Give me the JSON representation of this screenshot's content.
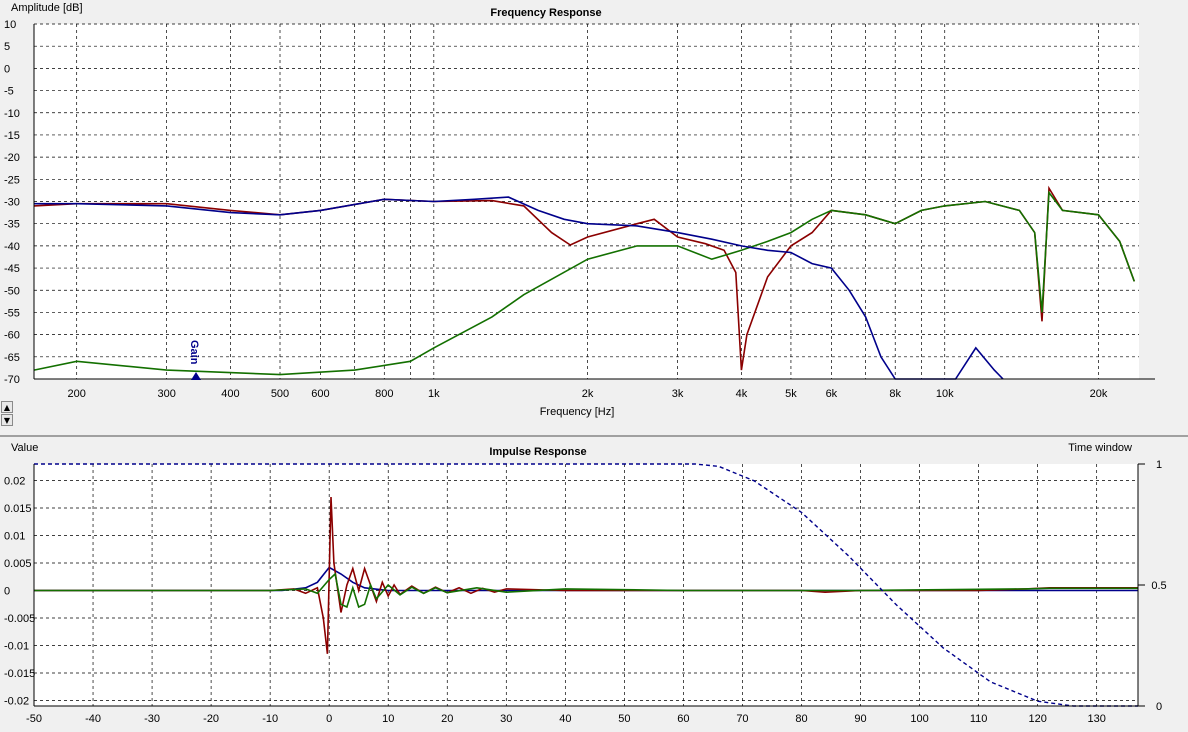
{
  "colors": {
    "red": "#8b0000",
    "green": "#137000",
    "blue": "#00008b",
    "window": "#00008b"
  },
  "chart_data": [
    {
      "type": "line",
      "title": "Frequency Response",
      "xlabel": "Frequency [Hz]",
      "ylabel": "Amplitude [dB]",
      "x_scale": "log",
      "xlim": [
        165,
        24000
      ],
      "ylim": [
        -70,
        10
      ],
      "x_ticks": [
        {
          "v": 200,
          "label": "200"
        },
        {
          "v": 300,
          "label": "300"
        },
        {
          "v": 400,
          "label": "400"
        },
        {
          "v": 500,
          "label": "500"
        },
        {
          "v": 600,
          "label": "600"
        },
        {
          "v": 800,
          "label": "800"
        },
        {
          "v": 1000,
          "label": "1k"
        },
        {
          "v": 2000,
          "label": "2k"
        },
        {
          "v": 3000,
          "label": "3k"
        },
        {
          "v": 4000,
          "label": "4k"
        },
        {
          "v": 5000,
          "label": "5k"
        },
        {
          "v": 6000,
          "label": "6k"
        },
        {
          "v": 8000,
          "label": "8k"
        },
        {
          "v": 10000,
          "label": "10k"
        },
        {
          "v": 20000,
          "label": "20k"
        }
      ],
      "y_ticks": [
        {
          "v": 10,
          "label": "10"
        },
        {
          "v": 5,
          "label": "5"
        },
        {
          "v": 0,
          "label": "0"
        },
        {
          "v": -5,
          "label": "-5"
        },
        {
          "v": -10,
          "label": "-10"
        },
        {
          "v": -15,
          "label": "-15"
        },
        {
          "v": -20,
          "label": "-20"
        },
        {
          "v": -25,
          "label": "-25"
        },
        {
          "v": -30,
          "label": "-30"
        },
        {
          "v": -35,
          "label": "-35"
        },
        {
          "v": -40,
          "label": "-40"
        },
        {
          "v": -45,
          "label": "-45"
        },
        {
          "v": -50,
          "label": "-50"
        },
        {
          "v": -55,
          "label": "-55"
        },
        {
          "v": -60,
          "label": "-60"
        },
        {
          "v": -65,
          "label": "-65"
        },
        {
          "v": -70,
          "label": "-70"
        }
      ],
      "grid": true,
      "annotation": "Gain",
      "series": [
        {
          "color": "red",
          "points": [
            [
              165,
              -31
            ],
            [
              200,
              -30.5
            ],
            [
              300,
              -30.5
            ],
            [
              400,
              -32
            ],
            [
              500,
              -33
            ],
            [
              600,
              -32
            ],
            [
              800,
              -29.5
            ],
            [
              1000,
              -30
            ],
            [
              1300,
              -29.8
            ],
            [
              1500,
              -31
            ],
            [
              1700,
              -37
            ],
            [
              1850,
              -39.8
            ],
            [
              2000,
              -38
            ],
            [
              2500,
              -35
            ],
            [
              2700,
              -34
            ],
            [
              3000,
              -38
            ],
            [
              3400,
              -39.5
            ],
            [
              3700,
              -41
            ],
            [
              3900,
              -46
            ],
            [
              4000,
              -68
            ],
            [
              4100,
              -60
            ],
            [
              4500,
              -47
            ],
            [
              5000,
              -40
            ],
            [
              5500,
              -37
            ],
            [
              6000,
              -32
            ],
            [
              7000,
              -33
            ],
            [
              8000,
              -35
            ],
            [
              9000,
              -32
            ],
            [
              10000,
              -31
            ],
            [
              12000,
              -30
            ],
            [
              14000,
              -32
            ],
            [
              15000,
              -37
            ],
            [
              15500,
              -57
            ],
            [
              16000,
              -27
            ],
            [
              17000,
              -32
            ],
            [
              20000,
              -33
            ],
            [
              22000,
              -39
            ],
            [
              23500,
              -48
            ]
          ]
        },
        {
          "color": "green",
          "points": [
            [
              165,
              -68
            ],
            [
              200,
              -66
            ],
            [
              300,
              -68
            ],
            [
              500,
              -69
            ],
            [
              700,
              -68
            ],
            [
              900,
              -66
            ],
            [
              1000,
              -63
            ],
            [
              1300,
              -56
            ],
            [
              1500,
              -51
            ],
            [
              2000,
              -43
            ],
            [
              2500,
              -40
            ],
            [
              3000,
              -40
            ],
            [
              3500,
              -43
            ],
            [
              4000,
              -41
            ],
            [
              4500,
              -39
            ],
            [
              5000,
              -37
            ],
            [
              5500,
              -34
            ],
            [
              6000,
              -32
            ],
            [
              7000,
              -33
            ],
            [
              8000,
              -35
            ],
            [
              9000,
              -32
            ],
            [
              10000,
              -31
            ],
            [
              12000,
              -30
            ],
            [
              14000,
              -32
            ],
            [
              15000,
              -37
            ],
            [
              15500,
              -55
            ],
            [
              16000,
              -28
            ],
            [
              17000,
              -32
            ],
            [
              20000,
              -33
            ],
            [
              22000,
              -39
            ],
            [
              23500,
              -48
            ]
          ]
        },
        {
          "color": "blue",
          "points": [
            [
              165,
              -30.5
            ],
            [
              200,
              -30.5
            ],
            [
              300,
              -31
            ],
            [
              400,
              -32.5
            ],
            [
              500,
              -33
            ],
            [
              600,
              -32
            ],
            [
              800,
              -29.5
            ],
            [
              1000,
              -30
            ],
            [
              1200,
              -29.5
            ],
            [
              1400,
              -29
            ],
            [
              1600,
              -32
            ],
            [
              1800,
              -34
            ],
            [
              2000,
              -35
            ],
            [
              2500,
              -35.5
            ],
            [
              3000,
              -37
            ],
            [
              3500,
              -38.5
            ],
            [
              4000,
              -40
            ],
            [
              4500,
              -41
            ],
            [
              5000,
              -41.5
            ],
            [
              5500,
              -44
            ],
            [
              6000,
              -45
            ],
            [
              6500,
              -50
            ],
            [
              7000,
              -56
            ],
            [
              7500,
              -65
            ],
            [
              8000,
              -70
            ],
            [
              10500,
              -70
            ],
            [
              11500,
              -63
            ],
            [
              12500,
              -68
            ],
            [
              13000,
              -70
            ]
          ]
        }
      ]
    },
    {
      "type": "line",
      "title": "Impulse Response",
      "ylabel": "Value",
      "y2label": "Time window",
      "xlim": [
        -50,
        137
      ],
      "ylim": [
        -0.021,
        0.023
      ],
      "y2lim": [
        0,
        1
      ],
      "x_ticks": [
        {
          "v": -50,
          "label": "-50"
        },
        {
          "v": -40,
          "label": "-40"
        },
        {
          "v": -30,
          "label": "-30"
        },
        {
          "v": -20,
          "label": "-20"
        },
        {
          "v": -10,
          "label": "-10"
        },
        {
          "v": 0,
          "label": "0"
        },
        {
          "v": 10,
          "label": "10"
        },
        {
          "v": 20,
          "label": "20"
        },
        {
          "v": 30,
          "label": "30"
        },
        {
          "v": 40,
          "label": "40"
        },
        {
          "v": 50,
          "label": "50"
        },
        {
          "v": 60,
          "label": "60"
        },
        {
          "v": 70,
          "label": "70"
        },
        {
          "v": 80,
          "label": "80"
        },
        {
          "v": 90,
          "label": "90"
        },
        {
          "v": 100,
          "label": "100"
        },
        {
          "v": 110,
          "label": "110"
        },
        {
          "v": 120,
          "label": "120"
        },
        {
          "v": 130,
          "label": "130"
        }
      ],
      "y_ticks": [
        {
          "v": 0.02,
          "label": "0.02"
        },
        {
          "v": 0.015,
          "label": "0.015"
        },
        {
          "v": 0.01,
          "label": "0.01"
        },
        {
          "v": 0.005,
          "label": "0.005"
        },
        {
          "v": 0,
          "label": "0"
        },
        {
          "v": -0.005,
          "label": "-0.005"
        },
        {
          "v": -0.01,
          "label": "-0.01"
        },
        {
          "v": -0.015,
          "label": "-0.015"
        },
        {
          "v": -0.02,
          "label": "-0.02"
        }
      ],
      "y2_ticks": [
        {
          "v": 1,
          "label": "1"
        },
        {
          "v": 0.5,
          "label": "0.5"
        },
        {
          "v": 0,
          "label": "0"
        }
      ],
      "grid": true,
      "series": [
        {
          "color": "blue",
          "points": [
            [
              -50,
              0
            ],
            [
              -8,
              0
            ],
            [
              -4,
              0.0005
            ],
            [
              -2,
              0.0015
            ],
            [
              0,
              0.0042
            ],
            [
              2,
              0.003
            ],
            [
              4,
              0.0015
            ],
            [
              6,
              0.0005
            ],
            [
              10,
              0
            ],
            [
              137,
              0
            ]
          ]
        },
        {
          "color": "red",
          "points": [
            [
              -50,
              0
            ],
            [
              -10,
              0
            ],
            [
              -6,
              0.0003
            ],
            [
              -4,
              -0.0005
            ],
            [
              -2,
              0.0005
            ],
            [
              -1,
              -0.005
            ],
            [
              -0.3,
              -0.0115
            ],
            [
              0.3,
              0.017
            ],
            [
              0.8,
              0.005
            ],
            [
              2,
              -0.004
            ],
            [
              3,
              0.001
            ],
            [
              4,
              0.004
            ],
            [
              5,
              0
            ],
            [
              6,
              0.004
            ],
            [
              7,
              0.001
            ],
            [
              8,
              -0.002
            ],
            [
              9,
              0.0015
            ],
            [
              10,
              -0.001
            ],
            [
              11,
              0.001
            ],
            [
              12,
              -0.0007
            ],
            [
              14,
              0.0008
            ],
            [
              16,
              -0.0005
            ],
            [
              18,
              0.0006
            ],
            [
              20,
              -0.0004
            ],
            [
              22,
              0.0005
            ],
            [
              24,
              -0.0005
            ],
            [
              26,
              0.0004
            ],
            [
              28,
              -0.0003
            ],
            [
              30,
              0.0003
            ],
            [
              40,
              0
            ],
            [
              80,
              0
            ],
            [
              84,
              -0.0003
            ],
            [
              90,
              0
            ],
            [
              110,
              0
            ],
            [
              118,
              0.0003
            ],
            [
              122,
              0.0005
            ],
            [
              137,
              0.0005
            ]
          ]
        },
        {
          "color": "green",
          "points": [
            [
              -50,
              0
            ],
            [
              -10,
              0
            ],
            [
              -4,
              0.0003
            ],
            [
              -2,
              -0.0005
            ],
            [
              0,
              0.002
            ],
            [
              1,
              0.003
            ],
            [
              2,
              -0.0025
            ],
            [
              3,
              -0.003
            ],
            [
              4,
              0.0005
            ],
            [
              5,
              -0.003
            ],
            [
              6,
              -0.0025
            ],
            [
              7,
              0.001
            ],
            [
              8,
              -0.0015
            ],
            [
              10,
              0.001
            ],
            [
              12,
              -0.0008
            ],
            [
              14,
              0.0006
            ],
            [
              16,
              -0.0005
            ],
            [
              18,
              0.0005
            ],
            [
              20,
              -0.0004
            ],
            [
              25,
              0.0005
            ],
            [
              30,
              -0.0003
            ],
            [
              40,
              0.0003
            ],
            [
              60,
              0
            ],
            [
              84,
              0
            ],
            [
              90,
              0
            ],
            [
              118,
              0.0003
            ],
            [
              122,
              0.0004
            ],
            [
              137,
              0.0004
            ]
          ]
        },
        {
          "color": "window",
          "style": "dashed",
          "axis": "y2",
          "points": [
            [
              -50,
              1
            ],
            [
              62,
              1
            ],
            [
              66,
              0.99
            ],
            [
              72,
              0.93
            ],
            [
              80,
              0.8
            ],
            [
              88,
              0.62
            ],
            [
              96,
              0.42
            ],
            [
              104,
              0.24
            ],
            [
              112,
              0.1
            ],
            [
              120,
              0.02
            ],
            [
              126,
              0
            ],
            [
              137,
              0
            ]
          ]
        }
      ]
    }
  ],
  "controls": {
    "scroll_up": "▲",
    "scroll_down": "▼"
  }
}
